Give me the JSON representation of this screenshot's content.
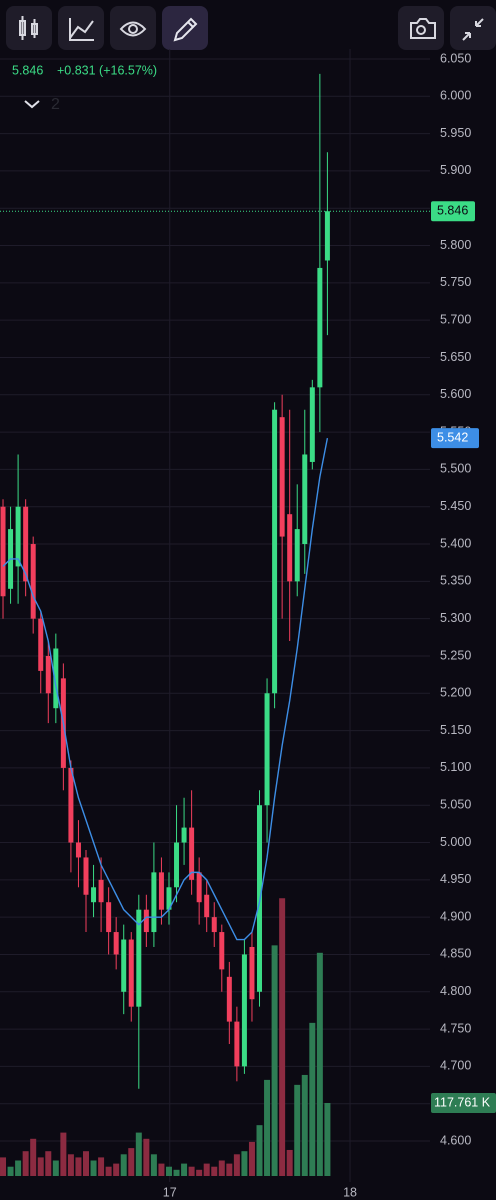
{
  "chart_data": {
    "type": "candlestick",
    "x": [
      0,
      1,
      2,
      3,
      4,
      5,
      6,
      7,
      8,
      9,
      10,
      11,
      12,
      13,
      14,
      15,
      16,
      17,
      18,
      19,
      20,
      21,
      22,
      23,
      24,
      25,
      26,
      27,
      28,
      29,
      30,
      31,
      32,
      33,
      34,
      35,
      36,
      37,
      38,
      39,
      40,
      41,
      42,
      43
    ],
    "open": [
      5.45,
      5.34,
      5.37,
      5.45,
      5.4,
      5.3,
      5.25,
      5.18,
      5.22,
      5.1,
      5.0,
      4.98,
      4.92,
      4.95,
      4.92,
      4.88,
      4.8,
      4.87,
      4.78,
      4.91,
      4.88,
      4.96,
      4.91,
      4.94,
      5.0,
      5.02,
      4.96,
      4.93,
      4.9,
      4.88,
      4.82,
      4.76,
      4.7,
      4.86,
      4.8,
      5.05,
      5.2,
      5.57,
      5.44,
      5.35,
      5.4,
      5.51,
      5.61,
      5.78
    ],
    "high": [
      5.46,
      5.45,
      5.52,
      5.46,
      5.41,
      5.31,
      5.27,
      5.28,
      5.24,
      5.11,
      5.03,
      4.99,
      4.97,
      4.98,
      4.94,
      4.9,
      4.89,
      4.88,
      4.93,
      4.93,
      5.0,
      4.98,
      4.96,
      5.05,
      5.06,
      5.07,
      4.98,
      4.95,
      4.92,
      4.89,
      4.84,
      4.78,
      4.87,
      4.88,
      5.07,
      5.22,
      5.59,
      5.6,
      5.58,
      5.48,
      5.58,
      5.62,
      6.03,
      5.925
    ],
    "low": [
      5.3,
      5.32,
      5.32,
      5.33,
      5.28,
      5.2,
      5.16,
      5.16,
      5.07,
      4.96,
      4.94,
      4.88,
      4.9,
      4.88,
      4.85,
      4.83,
      4.77,
      4.76,
      4.67,
      4.86,
      4.86,
      4.89,
      4.89,
      4.92,
      4.97,
      4.93,
      4.89,
      4.88,
      4.86,
      4.8,
      4.73,
      4.68,
      4.69,
      4.76,
      4.78,
      5.0,
      5.18,
      5.3,
      5.27,
      5.33,
      5.36,
      5.5,
      5.55,
      5.68
    ],
    "close": [
      5.33,
      5.42,
      5.45,
      5.35,
      5.3,
      5.23,
      5.2,
      5.26,
      5.1,
      5.0,
      4.98,
      4.93,
      4.94,
      4.92,
      4.88,
      4.85,
      4.87,
      4.78,
      4.91,
      4.88,
      4.96,
      4.91,
      4.94,
      5.0,
      5.02,
      4.95,
      4.92,
      4.9,
      4.88,
      4.83,
      4.76,
      4.7,
      4.85,
      4.79,
      5.05,
      5.2,
      5.58,
      5.41,
      5.35,
      5.42,
      5.52,
      5.61,
      5.77,
      5.846
    ],
    "volume": [
      30,
      15,
      25,
      40,
      60,
      30,
      40,
      25,
      70,
      35,
      30,
      40,
      25,
      30,
      15,
      20,
      35,
      45,
      70,
      60,
      35,
      20,
      15,
      10,
      20,
      15,
      10,
      20,
      15,
      25,
      20,
      35,
      40,
      55,
      82,
      155,
      372,
      448,
      42,
      147,
      163,
      247,
      360,
      117.761
    ],
    "ma": [
      5.37,
      5.38,
      5.38,
      5.36,
      5.33,
      5.31,
      5.27,
      5.21,
      5.16,
      5.1,
      5.06,
      5.03,
      5.0,
      4.97,
      4.95,
      4.93,
      4.91,
      4.9,
      4.89,
      4.9,
      4.9,
      4.9,
      4.91,
      4.93,
      4.95,
      4.96,
      4.96,
      4.95,
      4.93,
      4.91,
      4.89,
      4.87,
      4.87,
      4.88,
      4.92,
      4.98,
      5.06,
      5.13,
      5.19,
      5.26,
      5.34,
      5.42,
      5.49,
      5.542
    ],
    "up_color": "#3bdc86",
    "down_color": "#f23f5d",
    "up_volume_color": "#2e7d54",
    "down_volume_color": "#8c2b41",
    "ma_color": "#3d8ee6",
    "xlim": [
      -0.4,
      56.6
    ],
    "xticks": [
      {
        "value": 22.1,
        "label": "17"
      },
      {
        "value": 46,
        "label": "18"
      }
    ],
    "ylim": [
      4.6,
      6.05
    ],
    "yticks": [
      {
        "value": 6.05,
        "label": "6.050"
      },
      {
        "value": 6.0,
        "label": "6.000"
      },
      {
        "value": 5.95,
        "label": "5.950"
      },
      {
        "value": 5.9,
        "label": "5.900"
      },
      {
        "value": 5.85,
        "label": "5.850"
      },
      {
        "value": 5.8,
        "label": "5.800"
      },
      {
        "value": 5.75,
        "label": "5.750"
      },
      {
        "value": 5.7,
        "label": "5.700"
      },
      {
        "value": 5.65,
        "label": "5.650"
      },
      {
        "value": 5.6,
        "label": "5.600"
      },
      {
        "value": 5.55,
        "label": "5.550"
      },
      {
        "value": 5.5,
        "label": "5.500"
      },
      {
        "value": 5.45,
        "label": "5.450"
      },
      {
        "value": 5.4,
        "label": "5.400"
      },
      {
        "value": 5.35,
        "label": "5.350"
      },
      {
        "value": 5.3,
        "label": "5.300"
      },
      {
        "value": 5.25,
        "label": "5.250"
      },
      {
        "value": 5.2,
        "label": "5.200"
      },
      {
        "value": 5.15,
        "label": "5.150"
      },
      {
        "value": 5.1,
        "label": "5.100"
      },
      {
        "value": 5.05,
        "label": "5.050"
      },
      {
        "value": 5.0,
        "label": "5.000"
      },
      {
        "value": 4.95,
        "label": "4.950"
      },
      {
        "value": 4.9,
        "label": "4.900"
      },
      {
        "value": 4.85,
        "label": "4.850"
      },
      {
        "value": 4.8,
        "label": "4.800"
      },
      {
        "value": 4.75,
        "label": "4.750"
      },
      {
        "value": 4.7,
        "label": "4.700"
      },
      {
        "value": 4.65,
        "label": "4.650"
      },
      {
        "value": 4.6,
        "label": "4.600"
      }
    ],
    "vlim": [
      0,
      600
    ],
    "grid": true,
    "change_label": "+0.831 (+16.57%)",
    "indicator_count": "2",
    "volume_last_label": "117.761 K"
  }
}
